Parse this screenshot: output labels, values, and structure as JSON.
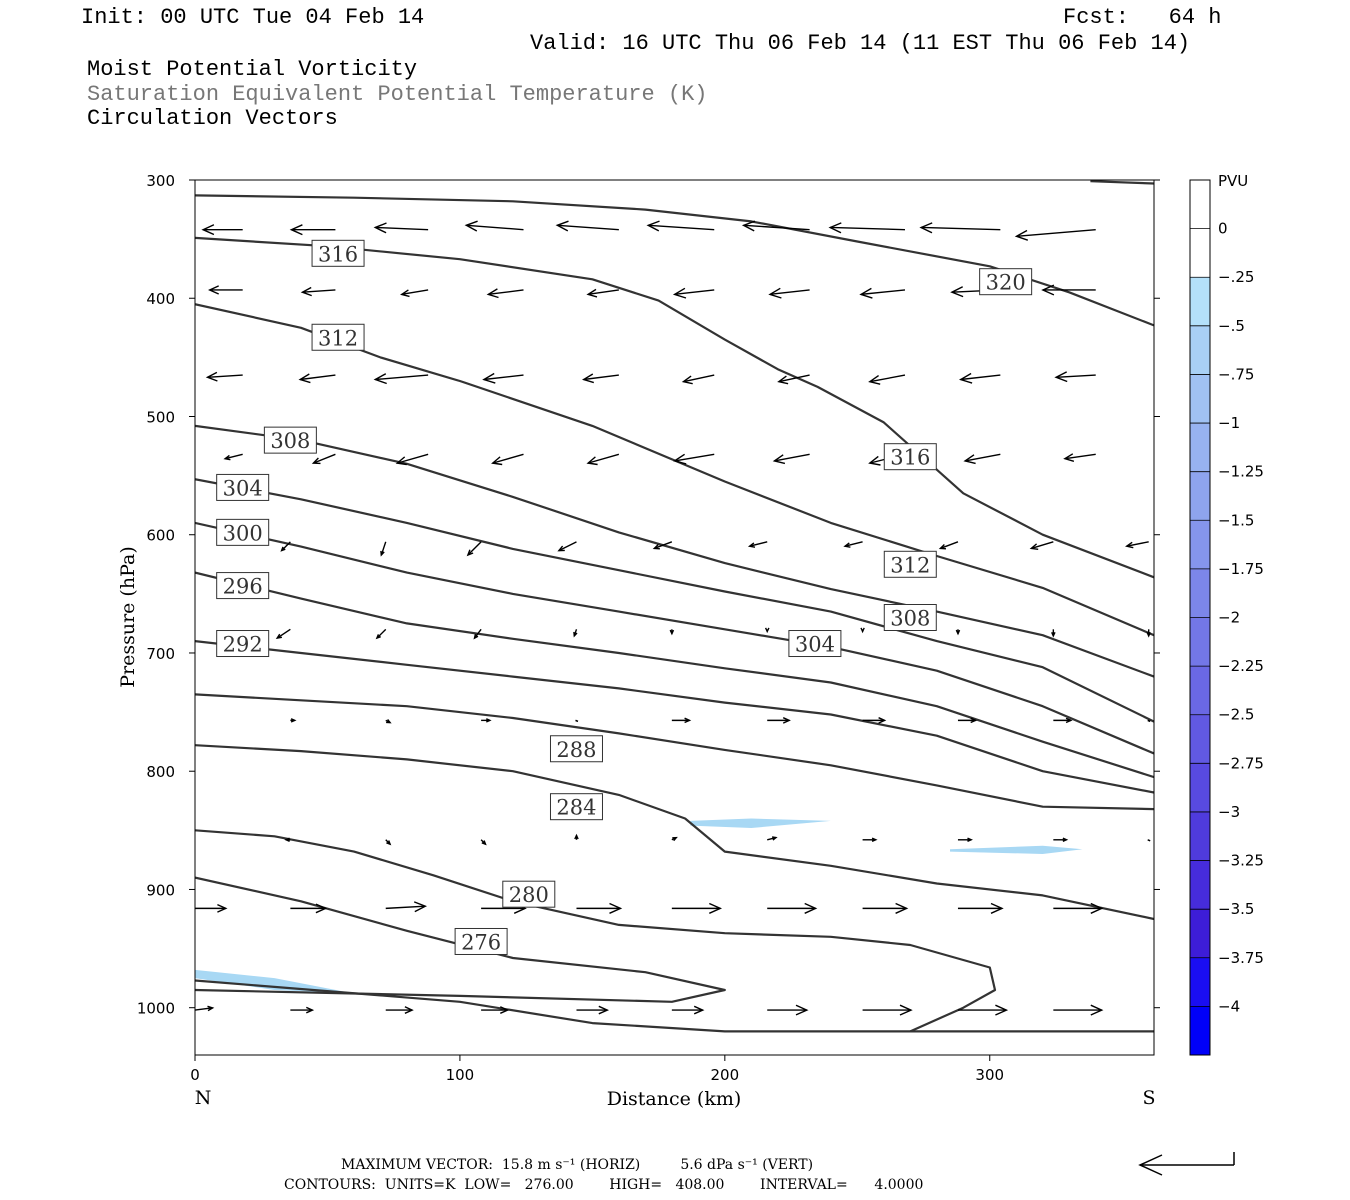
{
  "header": {
    "init": "Init: 00 UTC Tue 04 Feb 14",
    "fcst": "Fcst:   64 h",
    "valid": "Valid: 16 UTC Thu 06 Feb 14 (11 EST Thu 06 Feb 14)",
    "field1": "Moist Potential Vorticity",
    "field2": "Saturation Equivalent Potential Temperature (K)",
    "field3": "Circulation Vectors"
  },
  "footer": {
    "max_vector": "MAXIMUM VECTOR:  15.8 m s⁻¹ (HORIZ)         5.6 dPa s⁻¹ (VERT)",
    "contours": "CONTOURS:  UNITS=K  LOW=   276.00        HIGH=   408.00        INTERVAL=      4.0000"
  },
  "colors": {
    "contour": "#333333",
    "pv_fill": "#a8d8f4",
    "vector": "#000000"
  },
  "chart_data": {
    "type": "cross-section",
    "xlabel": "Distance (km)",
    "ylabel": "Pressure (hPa)",
    "x_ticks": [
      0,
      100,
      200,
      300
    ],
    "y_ticks": [
      300,
      400,
      500,
      600,
      700,
      800,
      900,
      1000
    ],
    "xlim": [
      0,
      362
    ],
    "ylim": [
      1040,
      300
    ],
    "x_end_labels": {
      "left": "N",
      "right": "S"
    },
    "colorbar": {
      "unit": "PVU",
      "levels": [
        "0",
        "-.25",
        "-.5",
        "-.75",
        "-1",
        "-1.25",
        "-1.5",
        "-1.75",
        "-2",
        "-2.25",
        "-2.5",
        "-2.75",
        "-3",
        "-3.25",
        "-3.5",
        "-3.75",
        "-4"
      ],
      "colors": [
        "#ffffff",
        "#ffffff",
        "#b4e1fa",
        "#a9d0f5",
        "#a0c1f3",
        "#97b2f0",
        "#8ea4ee",
        "#8595ec",
        "#7c86e9",
        "#7377e7",
        "#6a68e4",
        "#6159e2",
        "#584ae0",
        "#4f3bdd",
        "#462cdb",
        "#3d1dd8",
        "#1a0ef2",
        "#0000f8"
      ]
    },
    "theta_e_contours": [
      {
        "label": "316",
        "points": [
          [
            0,
            349
          ],
          [
            50,
            356
          ],
          [
            100,
            367
          ],
          [
            150,
            384
          ],
          [
            175,
            402
          ],
          [
            200,
            435
          ],
          [
            220,
            460
          ],
          [
            235,
            475
          ],
          [
            260,
            505
          ],
          [
            290,
            565
          ],
          [
            320,
            600
          ],
          [
            362,
            636
          ]
        ]
      },
      {
        "label": "312",
        "points": [
          [
            0,
            405
          ],
          [
            40,
            425
          ],
          [
            70,
            450
          ],
          [
            100,
            470
          ],
          [
            150,
            508
          ],
          [
            200,
            555
          ],
          [
            240,
            590
          ],
          [
            280,
            618
          ],
          [
            320,
            645
          ],
          [
            362,
            685
          ]
        ]
      },
      {
        "label": "308",
        "points": [
          [
            0,
            508
          ],
          [
            40,
            520
          ],
          [
            80,
            540
          ],
          [
            120,
            568
          ],
          [
            160,
            598
          ],
          [
            200,
            624
          ],
          [
            240,
            646
          ],
          [
            280,
            665
          ],
          [
            320,
            685
          ],
          [
            362,
            720
          ]
        ]
      },
      {
        "label": "304",
        "points": [
          [
            0,
            553
          ],
          [
            40,
            570
          ],
          [
            80,
            590
          ],
          [
            120,
            612
          ],
          [
            160,
            630
          ],
          [
            200,
            648
          ],
          [
            240,
            665
          ],
          [
            280,
            690
          ],
          [
            320,
            712
          ],
          [
            362,
            758
          ]
        ]
      },
      {
        "label": "300",
        "points": [
          [
            0,
            590
          ],
          [
            40,
            610
          ],
          [
            80,
            632
          ],
          [
            120,
            650
          ],
          [
            160,
            665
          ],
          [
            200,
            680
          ],
          [
            240,
            695
          ],
          [
            280,
            715
          ],
          [
            320,
            745
          ],
          [
            362,
            785
          ]
        ]
      },
      {
        "label": "296",
        "points": [
          [
            0,
            632
          ],
          [
            40,
            654
          ],
          [
            80,
            675
          ],
          [
            120,
            688
          ],
          [
            160,
            700
          ],
          [
            200,
            713
          ],
          [
            240,
            725
          ],
          [
            280,
            745
          ],
          [
            320,
            775
          ],
          [
            362,
            805
          ]
        ]
      },
      {
        "label": "292",
        "points": [
          [
            0,
            690
          ],
          [
            40,
            700
          ],
          [
            80,
            710
          ],
          [
            120,
            720
          ],
          [
            160,
            730
          ],
          [
            200,
            742
          ],
          [
            240,
            752
          ],
          [
            280,
            770
          ],
          [
            320,
            800
          ],
          [
            362,
            818
          ]
        ]
      },
      {
        "label": "288",
        "points": [
          [
            0,
            735
          ],
          [
            40,
            740
          ],
          [
            80,
            745
          ],
          [
            120,
            755
          ],
          [
            160,
            768
          ],
          [
            200,
            782
          ],
          [
            240,
            795
          ],
          [
            280,
            812
          ],
          [
            320,
            830
          ],
          [
            362,
            832
          ]
        ]
      },
      {
        "label": "284",
        "points": [
          [
            0,
            778
          ],
          [
            40,
            783
          ],
          [
            80,
            790
          ],
          [
            120,
            800
          ],
          [
            160,
            820
          ],
          [
            185,
            840
          ],
          [
            200,
            868
          ],
          [
            240,
            880
          ],
          [
            280,
            895
          ],
          [
            320,
            905
          ],
          [
            362,
            925
          ]
        ]
      },
      {
        "label": "280",
        "points": [
          [
            0,
            850
          ],
          [
            30,
            855
          ],
          [
            60,
            868
          ],
          [
            90,
            888
          ],
          [
            120,
            910
          ],
          [
            160,
            930
          ],
          [
            200,
            937
          ],
          [
            240,
            940
          ],
          [
            270,
            947
          ],
          [
            300,
            966
          ],
          [
            302,
            985
          ],
          [
            290,
            1000
          ],
          [
            270,
            1020
          ]
        ]
      },
      {
        "label": "276",
        "points": [
          [
            0,
            890
          ],
          [
            40,
            910
          ],
          [
            80,
            935
          ],
          [
            120,
            958
          ],
          [
            170,
            970
          ],
          [
            200,
            985
          ],
          [
            180,
            995
          ],
          [
            100,
            990
          ],
          [
            60,
            988
          ],
          [
            0,
            985
          ]
        ]
      },
      {
        "label": "",
        "points": [
          [
            0,
            977
          ],
          [
            100,
            995
          ],
          [
            150,
            1013
          ],
          [
            200,
            1020
          ],
          [
            362,
            1020
          ]
        ]
      },
      {
        "label": "",
        "points": [
          [
            0,
            313
          ],
          [
            60,
            315
          ],
          [
            120,
            318
          ],
          [
            170,
            325
          ],
          [
            210,
            335
          ],
          [
            250,
            352
          ],
          [
            300,
            373
          ],
          [
            330,
            395
          ],
          [
            362,
            423
          ]
        ]
      },
      {
        "label": "",
        "points": [
          [
            338,
            301
          ],
          [
            362,
            303
          ]
        ]
      }
    ],
    "contour_labels": [
      {
        "label": "316",
        "x": 54,
        "p": 362
      },
      {
        "label": "312",
        "x": 54,
        "p": 433
      },
      {
        "label": "308",
        "x": 36,
        "p": 520
      },
      {
        "label": "304",
        "x": 18,
        "p": 560
      },
      {
        "label": "300",
        "x": 18,
        "p": 598
      },
      {
        "label": "296",
        "x": 18,
        "p": 643
      },
      {
        "label": "292",
        "x": 18,
        "p": 692
      },
      {
        "label": "288",
        "x": 144,
        "p": 781
      },
      {
        "label": "284",
        "x": 144,
        "p": 830
      },
      {
        "label": "280",
        "x": 126,
        "p": 904
      },
      {
        "label": "276",
        "x": 108,
        "p": 944
      },
      {
        "label": "320",
        "x": 306,
        "p": 386
      },
      {
        "label": "316",
        "x": 270,
        "p": 534
      },
      {
        "label": "312",
        "x": 270,
        "p": 625
      },
      {
        "label": "308",
        "x": 270,
        "p": 670
      },
      {
        "label": "304",
        "x": 234,
        "p": 692
      }
    ],
    "pv_regions": [
      {
        "value": -0.5,
        "points": [
          [
            187,
            842
          ],
          [
            210,
            840
          ],
          [
            240,
            842
          ],
          [
            210,
            848
          ],
          [
            187,
            846
          ]
        ]
      },
      {
        "value": -0.5,
        "points": [
          [
            285,
            866
          ],
          [
            320,
            863
          ],
          [
            335,
            866
          ],
          [
            320,
            870
          ],
          [
            285,
            868
          ]
        ]
      },
      {
        "value": -0.5,
        "points": [
          [
            0,
            968
          ],
          [
            30,
            975
          ],
          [
            60,
            988
          ],
          [
            30,
            985
          ],
          [
            0,
            975
          ]
        ]
      }
    ],
    "vectors": [
      {
        "p": 342,
        "x": [
          18,
          53,
          88,
          124,
          160,
          196,
          232,
          268,
          304,
          340
        ],
        "u": [
          -18,
          -20,
          -24,
          -26,
          -28,
          -30,
          -30,
          -34,
          -36,
          -36
        ],
        "w": [
          0,
          0,
          -1,
          -2,
          -2,
          -2,
          -2,
          -1,
          -1,
          3
        ]
      },
      {
        "p": 393,
        "x": [
          18,
          53,
          88,
          124,
          160,
          196,
          232,
          268,
          304,
          340
        ],
        "u": [
          -15,
          -15,
          -12,
          -16,
          -14,
          -18,
          -18,
          -20,
          -22,
          -24
        ],
        "w": [
          0,
          1,
          2,
          2,
          2,
          2,
          2,
          2,
          1,
          0
        ]
      },
      {
        "p": 465,
        "x": [
          18,
          53,
          88,
          124,
          160,
          196,
          232,
          268,
          304,
          340
        ],
        "u": [
          -16,
          -16,
          -24,
          -18,
          -16,
          -14,
          -14,
          -16,
          -18,
          -18
        ],
        "w": [
          1,
          2,
          2,
          2,
          2,
          3,
          3,
          3,
          2,
          1
        ]
      },
      {
        "p": 532,
        "x": [
          18,
          53,
          88,
          124,
          160,
          196,
          232,
          268,
          304,
          340
        ],
        "u": [
          -8,
          -10,
          -14,
          -14,
          -14,
          -18,
          -16,
          -16,
          -16,
          -14
        ],
        "w": [
          2,
          4,
          4,
          4,
          4,
          3,
          3,
          4,
          3,
          2
        ]
      },
      {
        "p": 606,
        "x": [
          36,
          72,
          108,
          144,
          180,
          216,
          252,
          288,
          324,
          360
        ],
        "u": [
          -4,
          -2,
          -6,
          -8,
          -8,
          -8,
          -8,
          -8,
          -10,
          -10
        ],
        "w": [
          4,
          6,
          6,
          4,
          3,
          2,
          2,
          3,
          3,
          2
        ]
      },
      {
        "p": 680,
        "x": [
          36,
          72,
          108,
          144,
          180,
          216,
          252,
          288,
          324,
          360
        ],
        "u": [
          -6,
          -4,
          -3,
          -1,
          0,
          0,
          0,
          0,
          0,
          0
        ],
        "w": [
          4,
          4,
          4,
          3,
          2,
          1,
          1,
          2,
          3,
          3
        ]
      },
      {
        "p": 757,
        "x": [
          36,
          72,
          108,
          144,
          180,
          216,
          252,
          288,
          324,
          360
        ],
        "u": [
          2,
          2,
          4,
          0,
          8,
          10,
          10,
          8,
          8,
          0
        ],
        "w": [
          0,
          1,
          0,
          0,
          0,
          0,
          0,
          0,
          0,
          0
        ]
      },
      {
        "p": 858,
        "x": [
          36,
          72,
          108,
          144,
          180,
          216,
          252,
          288,
          324,
          360
        ],
        "u": [
          -2,
          2,
          2,
          0,
          2,
          4,
          6,
          6,
          6,
          0
        ],
        "w": [
          0,
          2,
          2,
          -2,
          -1,
          -1,
          0,
          0,
          0,
          0
        ]
      },
      {
        "p": 916,
        "x": [
          0,
          36,
          72,
          108,
          144,
          180,
          216,
          252,
          288,
          324
        ],
        "u": [
          14,
          16,
          18,
          20,
          20,
          22,
          22,
          20,
          20,
          22
        ],
        "w": [
          0,
          0,
          -1,
          0,
          0,
          0,
          0,
          0,
          0,
          0
        ]
      },
      {
        "p": 1002,
        "x": [
          0,
          36,
          72,
          108,
          144,
          180,
          216,
          252,
          288,
          324
        ],
        "u": [
          8,
          10,
          12,
          12,
          14,
          14,
          18,
          22,
          22,
          22
        ],
        "w": [
          -1,
          0,
          0,
          0,
          0,
          0,
          0,
          0,
          0,
          0
        ]
      }
    ]
  }
}
